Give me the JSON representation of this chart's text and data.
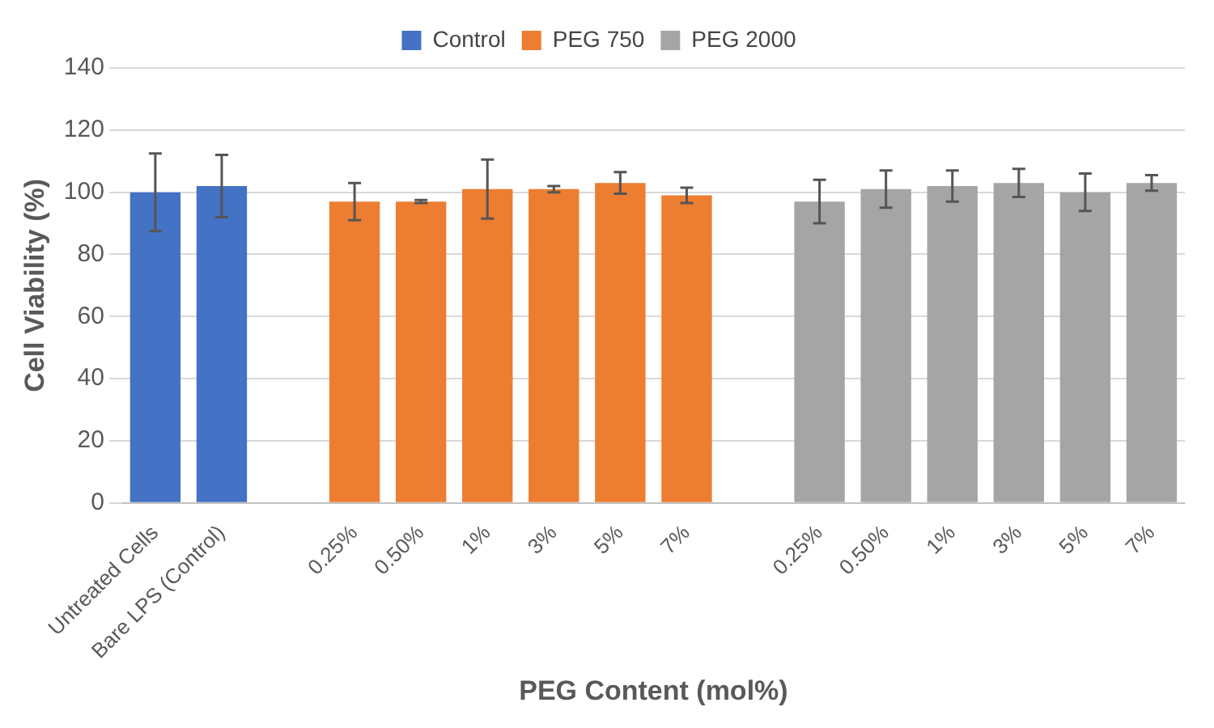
{
  "chart_data": {
    "type": "bar",
    "xlabel": "PEG Content (mol%)",
    "ylabel": "Cell Viability (%)",
    "categories": [
      "Untreated Cells",
      "Bare LPS (Control)",
      null,
      "0.25%",
      "0.50%",
      "1%",
      "3%",
      "5%",
      "7%",
      null,
      "0.25%",
      "0.50%",
      "1%",
      "3%",
      "5%",
      "7%"
    ],
    "series": [
      {
        "name": "Control",
        "color": "#4472c4",
        "values": [
          100,
          102,
          null,
          null,
          null,
          null,
          null,
          null,
          null,
          null,
          null,
          null,
          null,
          null,
          null,
          null
        ],
        "errors": [
          12.5,
          10,
          null,
          null,
          null,
          null,
          null,
          null,
          null,
          null,
          null,
          null,
          null,
          null,
          null,
          null
        ]
      },
      {
        "name": "PEG 750",
        "color": "#ed7d31",
        "values": [
          null,
          null,
          null,
          97,
          97,
          101,
          101,
          103,
          99,
          null,
          null,
          null,
          null,
          null,
          null,
          null
        ],
        "errors": [
          null,
          null,
          null,
          6,
          0.5,
          9.5,
          1,
          3.5,
          2.5,
          null,
          null,
          null,
          null,
          null,
          null,
          null
        ]
      },
      {
        "name": "PEG 2000",
        "color": "#a5a5a5",
        "values": [
          null,
          null,
          null,
          null,
          null,
          null,
          null,
          null,
          null,
          null,
          97,
          101,
          102,
          103,
          100,
          103
        ],
        "errors": [
          null,
          null,
          null,
          null,
          null,
          null,
          null,
          null,
          null,
          null,
          7,
          6,
          5,
          4.5,
          6,
          2.5
        ]
      }
    ],
    "ylim": [
      0,
      140
    ],
    "yticks": [
      0,
      20,
      40,
      60,
      80,
      100,
      120,
      140
    ],
    "grid": "y",
    "legend": "top"
  }
}
